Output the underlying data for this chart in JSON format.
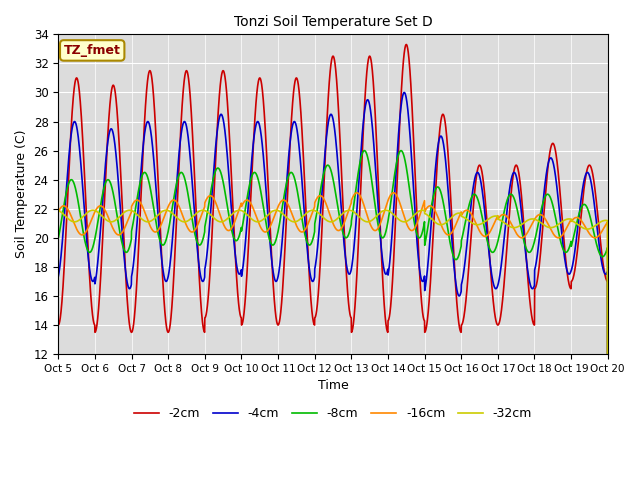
{
  "title": "Tonzi Soil Temperature Set D",
  "xlabel": "Time",
  "ylabel": "Soil Temperature (C)",
  "ylim": [
    12,
    34
  ],
  "n_days": 15,
  "tick_labels": [
    "Oct 5",
    "Oct 6",
    "Oct 7",
    "Oct 8",
    "Oct 9",
    "Oct 10",
    "Oct 11",
    "Oct 12",
    "Oct 13",
    "Oct 14",
    "Oct 15",
    "Oct 16",
    "Oct 17",
    "Oct 18",
    "Oct 19",
    "Oct 20"
  ],
  "legend_labels": [
    "-2cm",
    "-4cm",
    "-8cm",
    "-16cm",
    "-32cm"
  ],
  "line_colors": [
    "#cc0000",
    "#0000cc",
    "#00bb00",
    "#ff8800",
    "#cccc00"
  ],
  "line_widths": [
    1.2,
    1.2,
    1.2,
    1.2,
    1.2
  ],
  "bg_color": "#e8e8e8",
  "plot_bg_color": "#dcdcdc",
  "annotation_text": "TZ_fmet",
  "annotation_color": "#8b0000",
  "annotation_bg": "#ffffcc",
  "series": {
    "depth_2cm": {
      "centers": [
        22.5,
        22.0,
        22.5,
        22.5,
        23.0,
        22.5,
        22.5,
        23.5,
        23.0,
        23.8,
        21.0,
        19.5,
        19.5,
        21.5,
        21.0,
        21.0
      ],
      "amplitudes": [
        8.5,
        8.5,
        9.0,
        9.0,
        8.5,
        8.5,
        8.5,
        9.0,
        9.5,
        9.5,
        7.5,
        5.5,
        5.5,
        5.0,
        4.0,
        4.0
      ],
      "phase": 0.0
    },
    "depth_4cm": {
      "centers": [
        22.5,
        22.0,
        22.5,
        22.5,
        23.0,
        22.5,
        22.5,
        23.0,
        23.5,
        23.5,
        21.5,
        20.5,
        20.5,
        21.5,
        21.0,
        21.0
      ],
      "amplitudes": [
        5.5,
        5.5,
        5.5,
        5.5,
        5.5,
        5.5,
        5.5,
        5.5,
        6.0,
        6.5,
        5.5,
        4.0,
        4.0,
        4.0,
        3.5,
        3.0
      ],
      "phase": 0.35
    },
    "depth_8cm": {
      "centers": [
        21.5,
        21.5,
        22.0,
        22.0,
        22.3,
        22.0,
        22.0,
        22.5,
        23.0,
        23.0,
        21.0,
        21.0,
        21.0,
        21.0,
        20.5,
        20.5
      ],
      "amplitudes": [
        2.5,
        2.5,
        2.5,
        2.5,
        2.5,
        2.5,
        2.5,
        2.5,
        3.0,
        3.0,
        2.5,
        2.0,
        2.0,
        2.0,
        1.8,
        1.8
      ],
      "phase": 0.9
    },
    "depth_16cm": {
      "centers": [
        21.2,
        21.2,
        21.5,
        21.5,
        21.7,
        21.5,
        21.5,
        21.7,
        21.8,
        21.8,
        21.2,
        21.0,
        20.8,
        20.8,
        20.7,
        20.7
      ],
      "amplitudes": [
        1.0,
        1.0,
        1.1,
        1.1,
        1.2,
        1.1,
        1.1,
        1.2,
        1.3,
        1.3,
        1.0,
        0.9,
        0.8,
        0.8,
        0.7,
        0.7
      ],
      "phase": 2.2
    },
    "depth_32cm": {
      "centers": [
        21.5,
        21.5,
        21.5,
        21.5,
        21.5,
        21.5,
        21.5,
        21.5,
        21.5,
        21.5,
        21.3,
        21.2,
        21.0,
        21.0,
        20.9,
        20.8
      ],
      "amplitudes": [
        0.4,
        0.4,
        0.4,
        0.4,
        0.4,
        0.4,
        0.4,
        0.4,
        0.4,
        0.4,
        0.4,
        0.3,
        0.3,
        0.3,
        0.3,
        0.3
      ],
      "phase": 3.5
    }
  }
}
